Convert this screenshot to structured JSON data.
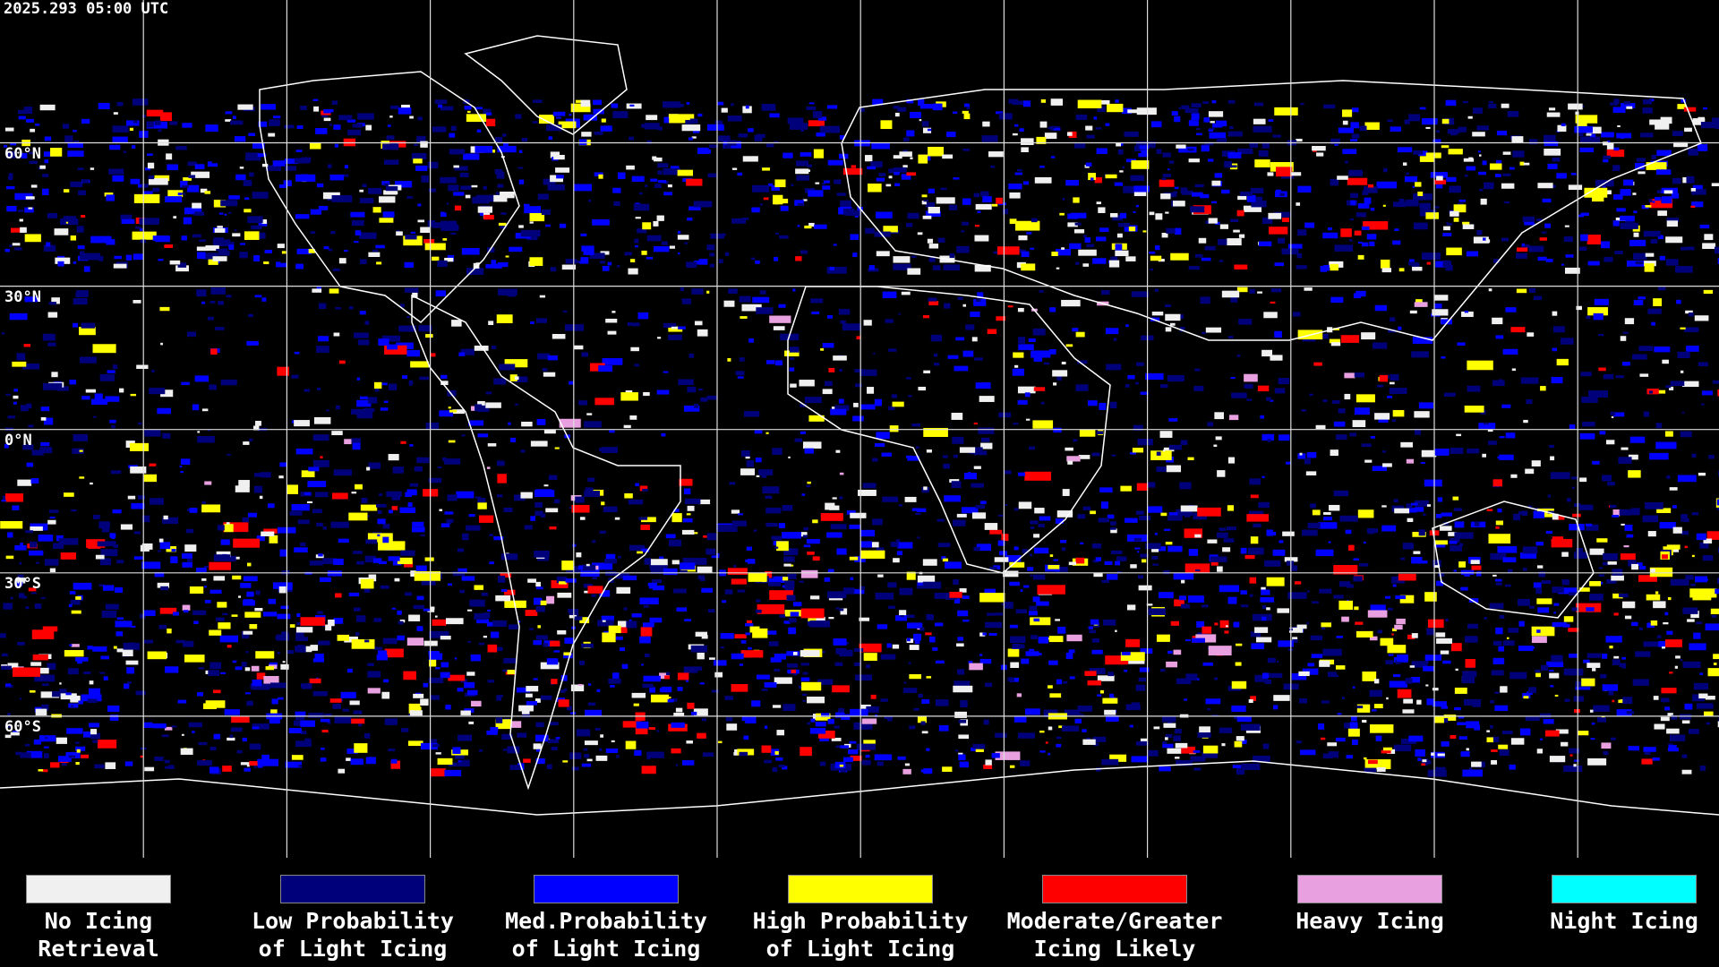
{
  "timestamp": "2025.293 05:00 UTC",
  "latitude_labels": [
    "60°N",
    "30°N",
    "0°N",
    "30°S",
    "60°S"
  ],
  "legend": [
    {
      "lines": [
        "No Icing",
        "Retrieval"
      ],
      "color": "#f0f0f0"
    },
    {
      "lines": [
        "Low Probability",
        "of Light Icing"
      ],
      "color": "#00007a"
    },
    {
      "lines": [
        "Med.Probability",
        "of Light Icing"
      ],
      "color": "#0000ff"
    },
    {
      "lines": [
        "High Probability",
        "of Light Icing"
      ],
      "color": "#ffff00"
    },
    {
      "lines": [
        "Moderate/Greater",
        "Icing Likely"
      ],
      "color": "#ff0000"
    },
    {
      "lines": [
        "Heavy Icing"
      ],
      "color": "#e8a0e0"
    },
    {
      "lines": [
        "Night Icing"
      ],
      "color": "#00ffff"
    }
  ]
}
